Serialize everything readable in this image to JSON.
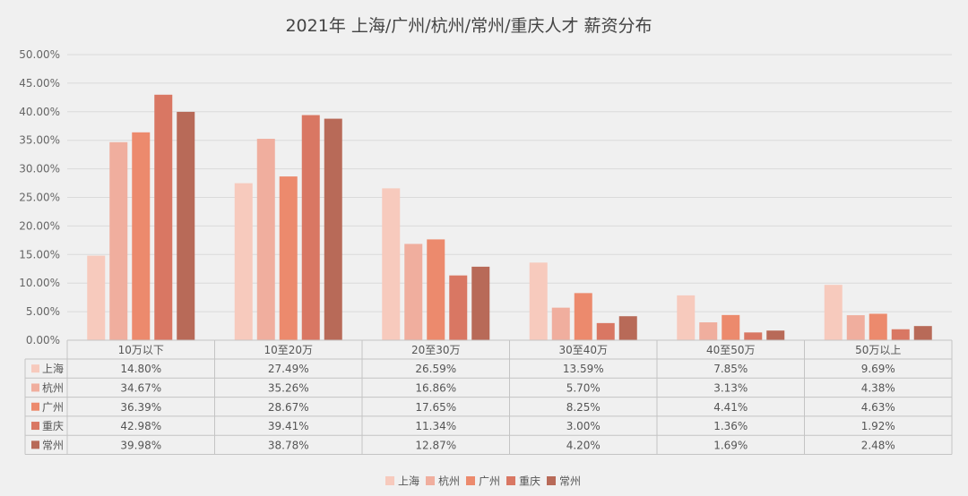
{
  "chart_data": {
    "type": "bar",
    "title": "2021年 上海/广州/杭州/常州/重庆人才 薪资分布",
    "categories": [
      "10万以下",
      "10至20万",
      "20至30万",
      "30至40万",
      "40至50万",
      "50万以上"
    ],
    "ylim": [
      0,
      50
    ],
    "ytick_labels": [
      "0.00%",
      "5.00%",
      "10.00%",
      "15.00%",
      "20.00%",
      "25.00%",
      "30.00%",
      "35.00%",
      "40.00%",
      "45.00%",
      "50.00%"
    ],
    "grid": true,
    "legend_position": "bottom",
    "series": [
      {
        "name": "上海",
        "color": "#f7cabd",
        "values": [
          14.8,
          27.49,
          26.59,
          13.59,
          7.85,
          9.69
        ],
        "labels": [
          "14.80%",
          "27.49%",
          "26.59%",
          "13.59%",
          "7.85%",
          "9.69%"
        ]
      },
      {
        "name": "杭州",
        "color": "#f0ae9e",
        "values": [
          34.67,
          35.26,
          16.86,
          5.7,
          3.13,
          4.38
        ],
        "labels": [
          "34.67%",
          "35.26%",
          "16.86%",
          "5.70%",
          "3.13%",
          "4.38%"
        ]
      },
      {
        "name": "广州",
        "color": "#ec8a6d",
        "values": [
          36.39,
          28.67,
          17.65,
          8.25,
          4.41,
          4.63
        ],
        "labels": [
          "36.39%",
          "28.67%",
          "17.65%",
          "8.25%",
          "4.41%",
          "4.63%"
        ]
      },
      {
        "name": "重庆",
        "color": "#d97763",
        "values": [
          42.98,
          39.41,
          11.34,
          3.0,
          1.36,
          1.92
        ],
        "labels": [
          "42.98%",
          "39.41%",
          "11.34%",
          "3.00%",
          "1.36%",
          "1.92%"
        ]
      },
      {
        "name": "常州",
        "color": "#b86a58",
        "values": [
          39.98,
          38.78,
          12.87,
          4.2,
          1.69,
          2.48
        ],
        "labels": [
          "39.98%",
          "38.78%",
          "12.87%",
          "4.20%",
          "1.69%",
          "2.48%"
        ]
      }
    ]
  }
}
